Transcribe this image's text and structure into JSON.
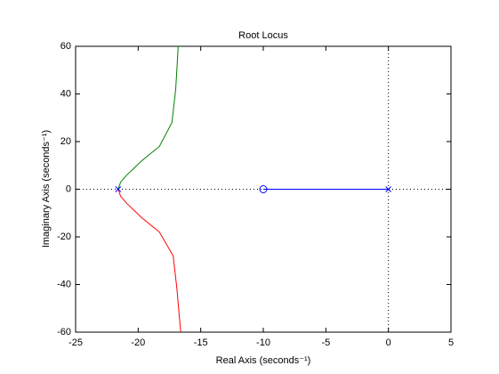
{
  "chart_data": {
    "type": "line",
    "title": "Root Locus",
    "xlabel": "Real Axis (seconds⁻¹)",
    "ylabel": "Imaginary Axis (seconds⁻¹)",
    "xlim": [
      -25,
      5
    ],
    "xticks": [
      -25,
      -20,
      -15,
      -10,
      -5,
      0,
      5
    ],
    "ylim": [
      -60,
      60
    ],
    "yticks": [
      -60,
      -40,
      -20,
      0,
      20,
      40,
      60
    ],
    "zero_lines": true,
    "series": [
      {
        "color": "#008000",
        "x": [
          -21.6,
          -21.4,
          -20.9,
          -19.7,
          -18.3,
          -17.3,
          -17.0,
          -16.8
        ],
        "values": [
          0,
          3,
          6,
          12,
          18,
          28,
          42,
          60
        ]
      },
      {
        "color": "#ff0000",
        "x": [
          -21.6,
          -21.4,
          -20.9,
          -19.7,
          -18.3,
          -17.2,
          -16.9,
          -16.6
        ],
        "values": [
          0,
          -3,
          -6,
          -12,
          -18,
          -28,
          -42,
          -60
        ]
      },
      {
        "color": "#0000ff",
        "x": [
          0,
          -10
        ],
        "values": [
          0,
          0
        ]
      }
    ],
    "poles": {
      "color": "#0000ff",
      "x": [
        -21.6,
        0
      ],
      "y": [
        0,
        0
      ]
    },
    "zeros": {
      "color": "#0000ff",
      "x": [
        -10
      ],
      "y": [
        0
      ]
    }
  }
}
